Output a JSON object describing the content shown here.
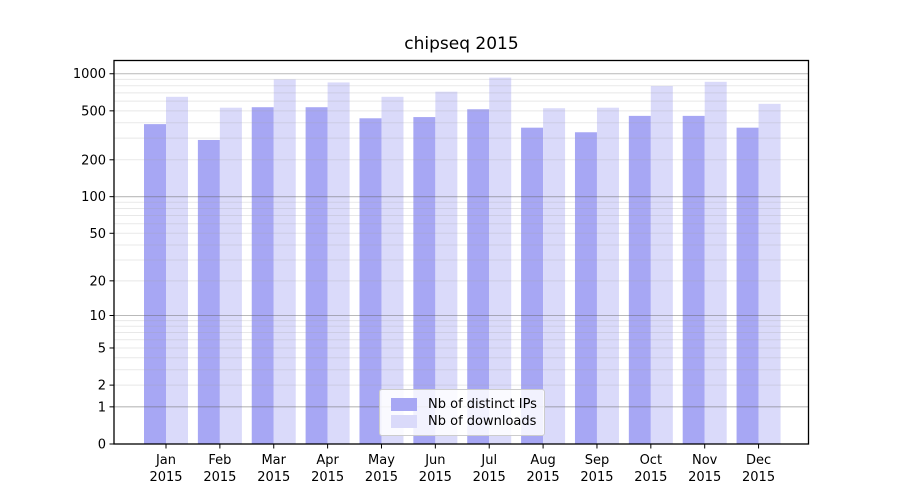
{
  "figure": {
    "title": "chipseq 2015"
  },
  "chart_data": {
    "type": "bar",
    "title": "chipseq 2015",
    "x_categories": [
      "Jan",
      "Feb",
      "Mar",
      "Apr",
      "May",
      "Jun",
      "Jul",
      "Aug",
      "Sep",
      "Oct",
      "Nov",
      "Dec"
    ],
    "x_year": "2015",
    "series": [
      {
        "name": "Nb of distinct IPs",
        "color": "#a7a7f4",
        "values": [
          390,
          290,
          535,
          535,
          435,
          445,
          515,
          365,
          335,
          455,
          455,
          365
        ]
      },
      {
        "name": "Nb of downloads",
        "color": "#dadafa",
        "values": [
          650,
          530,
          900,
          850,
          650,
          715,
          930,
          525,
          530,
          795,
          860,
          570
        ]
      }
    ],
    "y_scale": "log1p",
    "y_ticks": [
      0,
      1,
      2,
      5,
      10,
      20,
      50,
      100,
      200,
      500,
      1000
    ],
    "ylim": [
      0,
      1300
    ],
    "grid": "horizontal major and minor gridlines",
    "legend_position": "inside plot, lower center",
    "colors": {
      "major_grid": "#b3b3b3",
      "minor_grid": "#ececec",
      "axis_frame": "#000000",
      "text": "#000000"
    }
  }
}
